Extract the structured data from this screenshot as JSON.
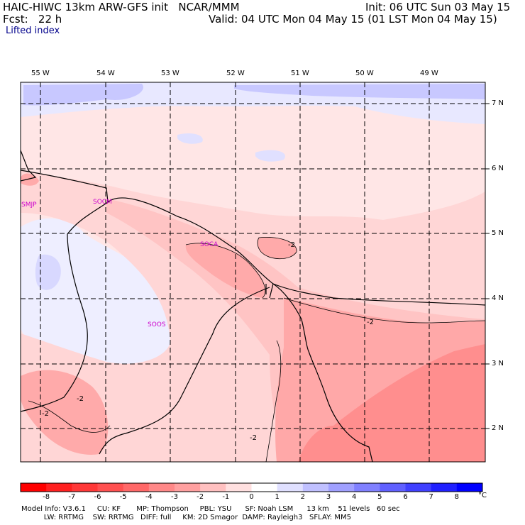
{
  "header": {
    "line1_left": "HAIC-HIWC 13km ARW-GFS init   NCAR/MMM",
    "line1_right": "Init: 06 UTC Sun 03 May 15",
    "line2_left": "Fcst:   22 h",
    "line2_right": "Valid: 04 UTC Mon 04 May 15 (01 LST Mon 04 May 15)",
    "field": "Lifted index"
  },
  "map": {
    "lon_labels": [
      "55 W",
      "54 W",
      "53 W",
      "52 W",
      "51 W",
      "50 W",
      "49 W"
    ],
    "lat_labels": [
      "7 N",
      "6 N",
      "5 N",
      "4 N",
      "3 N",
      "2 N"
    ],
    "stations": [
      "SMJP",
      "SOCM",
      "SOCA",
      "SOOS"
    ],
    "contour_labels": [
      "-2",
      "-2",
      "-2",
      "-2",
      "-2"
    ]
  },
  "colorbar": {
    "labels": [
      "-8",
      "-7",
      "-6",
      "-5",
      "-4",
      "-3",
      "-2",
      "-1",
      "0",
      "1",
      "2",
      "3",
      "4",
      "5",
      "6",
      "7",
      "8"
    ],
    "unit": "°C",
    "colors": [
      "#ff0000",
      "#ff2020",
      "#ff3838",
      "#ff5050",
      "#ff6868",
      "#ff8888",
      "#ffa0a0",
      "#ffc0c0",
      "#ffe0e0",
      "#ffffff",
      "#e0e0ff",
      "#c0c0ff",
      "#a0a0ff",
      "#8080ff",
      "#6060ff",
      "#4040ff",
      "#2020ff",
      "#0000ff"
    ]
  },
  "footer": {
    "line1": "Model Info: V3.6.1     CU: KF       MP: Thompson     PBL: YSU      SF: Noah LSM      13 km    51 levels   60 sec",
    "line2": "          LW: RRTMG    SW: RRTMG   DIFF: full     KM: 2D Smagor  DAMP: Rayleigh3   SFLAY: MM5"
  }
}
